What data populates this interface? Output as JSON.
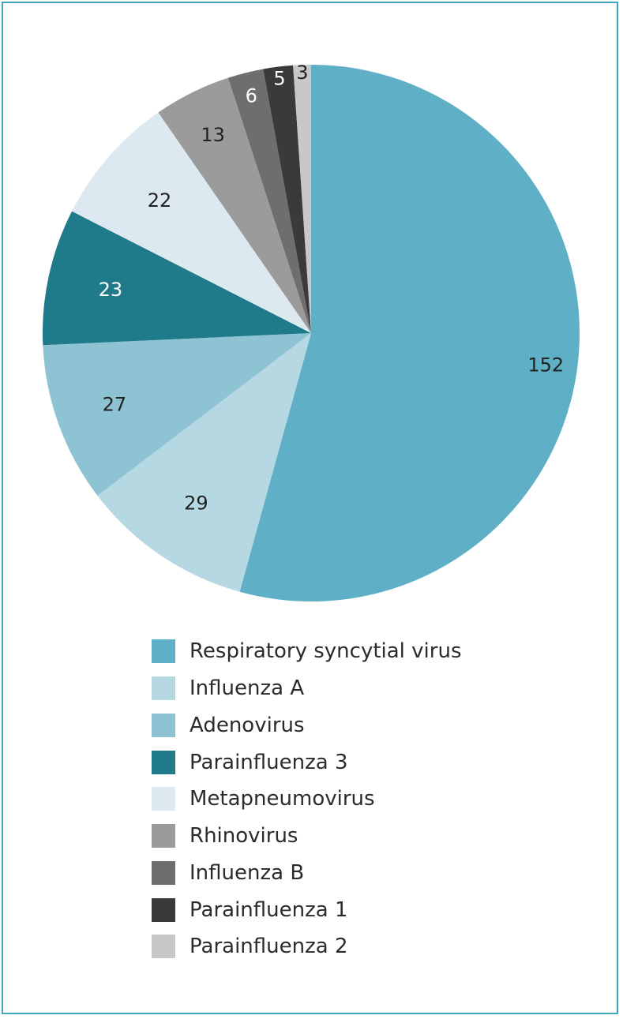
{
  "chart_data": {
    "type": "pie",
    "title": "",
    "slices": [
      {
        "label": "Respiratory syncytial virus",
        "value": 152,
        "color": "#5fb0c6",
        "text_color": "#222222"
      },
      {
        "label": "Influenza A",
        "value": 29,
        "color": "#b6d8e2",
        "text_color": "#222222"
      },
      {
        "label": "Adenovirus",
        "value": 27,
        "color": "#8dc3d3",
        "text_color": "#222222"
      },
      {
        "label": "Parainfluenza 3",
        "value": 23,
        "color": "#1f7a8a",
        "text_color": "#ffffff"
      },
      {
        "label": "Metapneumovirus",
        "value": 22,
        "color": "#dde9f1",
        "text_color": "#222222"
      },
      {
        "label": "Rhinovirus",
        "value": 13,
        "color": "#9b9b9b",
        "text_color": "#222222"
      },
      {
        "label": "Influenza B",
        "value": 6,
        "color": "#6e6e6e",
        "text_color": "#ffffff"
      },
      {
        "label": "Parainfluenza 1",
        "value": 5,
        "color": "#3a3a3a",
        "text_color": "#ffffff"
      },
      {
        "label": "Parainfluenza 2",
        "value": 3,
        "color": "#c8c8c8",
        "text_color": "#222222"
      }
    ],
    "start_angle": "12 o'clock",
    "direction": "clockwise",
    "legend_position": "bottom"
  },
  "frame_color": "#3fa7bd"
}
